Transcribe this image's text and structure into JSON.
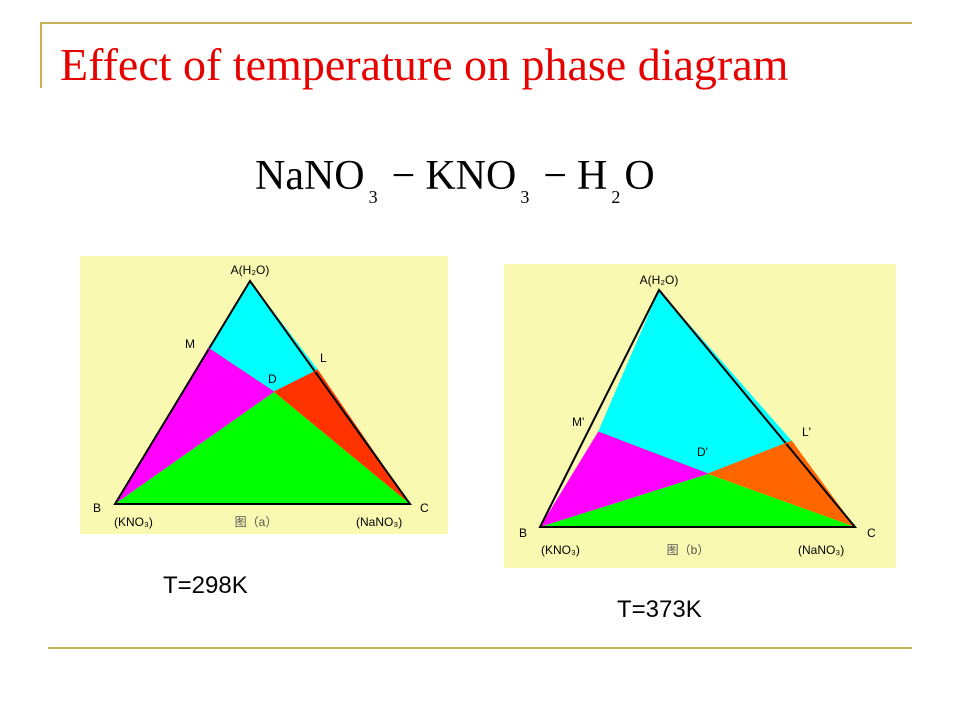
{
  "slide": {
    "title": "Effect of temperature on phase diagram",
    "formula": {
      "part1": "NaNO",
      "sub1": "3",
      "sep1": "−",
      "part2": "KNO",
      "sub2": "3",
      "sep2": "−",
      "part3": "H",
      "sub3": "2",
      "part4": "O"
    }
  },
  "diagrams": [
    {
      "id": "a",
      "apex_label": "A(H₂O)",
      "left_label": "B",
      "right_label": "C",
      "left_species": "(KNO₃)",
      "right_species": "(NaNO₃)",
      "caption": "图（a）",
      "left_edge_point": "M",
      "right_edge_point": "L",
      "center_point": "D",
      "temperature": "T=298K"
    },
    {
      "id": "b",
      "apex_label": "A(H₂O)",
      "left_label": "B",
      "right_label": "C",
      "left_species": "(KNO₃)",
      "right_species": "(NaNO₃)",
      "caption": "图（b）",
      "left_edge_point": "M'",
      "right_edge_point": "L'",
      "center_point": "D'",
      "temperature": "T=373K"
    }
  ],
  "colors": {
    "title": "#e60000",
    "panel_bg": "#f9f9b2",
    "unsaturated_region": "#00ffff",
    "kno3_region": "#ff00ff",
    "nano3_region_a": "#ff3300",
    "nano3_region_b": "#ff6600",
    "double_salt_region": "#00ff00",
    "rule": "#c9b15a"
  }
}
